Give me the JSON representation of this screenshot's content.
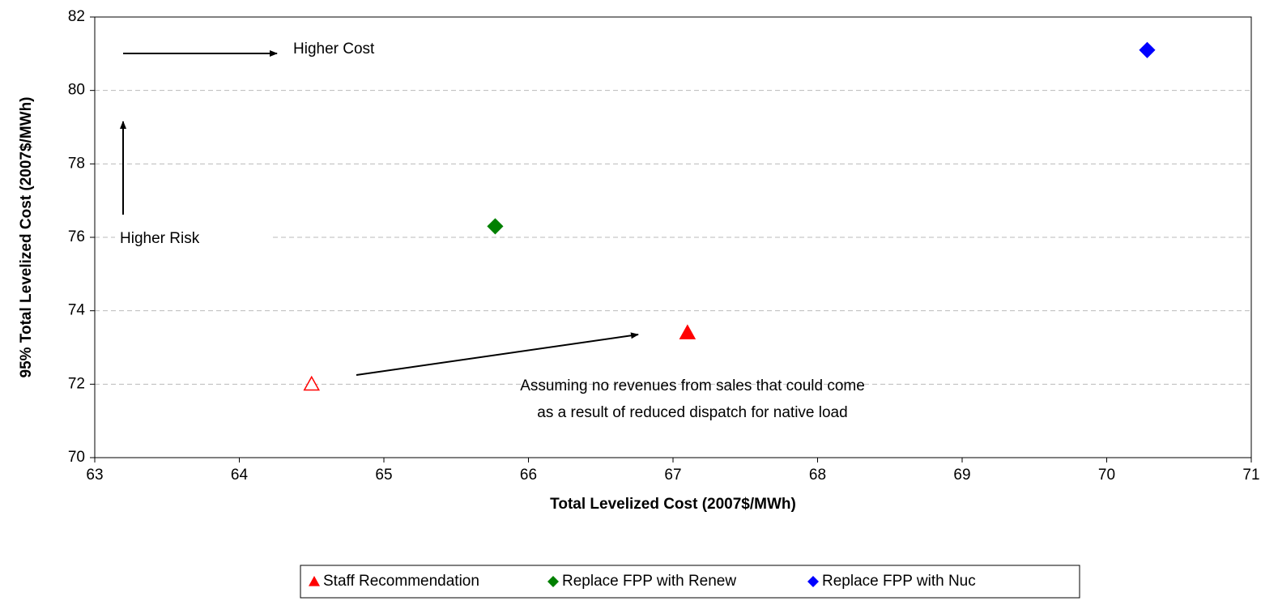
{
  "chart_data": {
    "type": "scatter",
    "xlabel": "Total Levelized Cost (2007$/MWh)",
    "ylabel": "95% Total Levelized Cost (2007$/MWh)",
    "xlim": [
      63,
      71
    ],
    "xticks": [
      63,
      64,
      65,
      66,
      67,
      68,
      69,
      70,
      71
    ],
    "ylim": [
      70,
      82
    ],
    "yticks": [
      70,
      72,
      74,
      76,
      78,
      80,
      82
    ],
    "grid": true,
    "legend": "bottom",
    "series": [
      {
        "name": "Staff Recommendation",
        "color": "#ff0000",
        "marker": "triangle",
        "x": [
          64.5,
          67.1
        ],
        "values": [
          72.0,
          73.4
        ],
        "hollow": [
          true,
          false
        ]
      },
      {
        "name": "Replace FPP with Renew",
        "color": "#008000",
        "marker": "diamond",
        "x": [
          65.77
        ],
        "values": [
          76.3
        ],
        "hollow": [
          false
        ]
      },
      {
        "name": "Replace FPP with Nuc",
        "color": "#0000ff",
        "marker": "diamond",
        "x": [
          70.28
        ],
        "values": [
          81.1
        ],
        "hollow": [
          false
        ]
      }
    ],
    "annotations": [
      "Higher Cost",
      "Higher Risk",
      "Assuming no revenues from sales that could come",
      "as a result of reduced dispatch for native load"
    ]
  }
}
